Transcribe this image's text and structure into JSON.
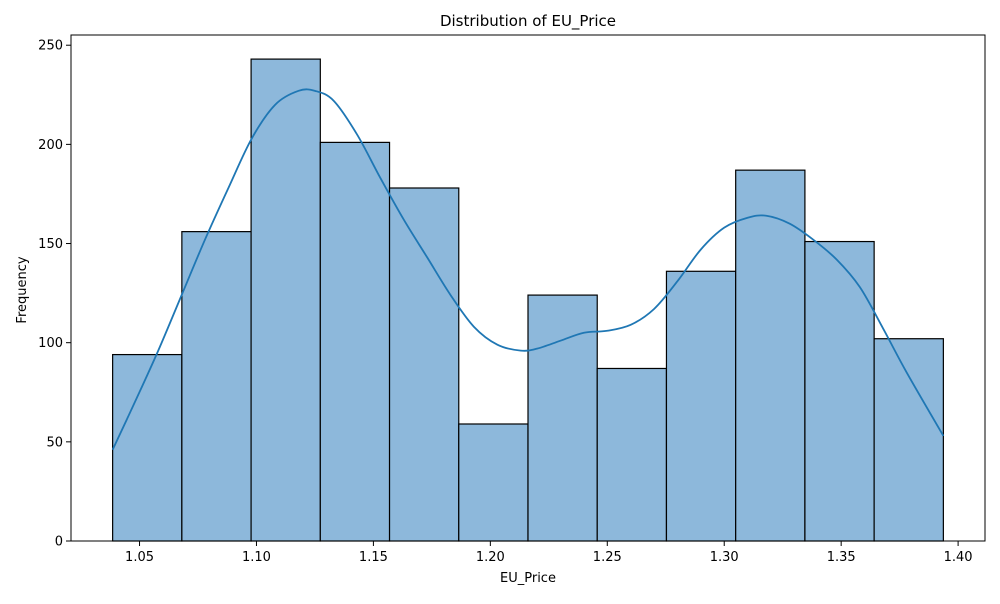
{
  "chart_data": {
    "type": "bar",
    "title": "Distribution of EU_Price",
    "xlabel": "EU_Price",
    "ylabel": "Frequency",
    "bin_edges": [
      1.0385,
      1.0681,
      1.0977,
      1.1273,
      1.1569,
      1.1865,
      1.2161,
      1.2457,
      1.2753,
      1.3049,
      1.3345,
      1.3641,
      1.3937
    ],
    "values": [
      94,
      156,
      243,
      201,
      178,
      59,
      124,
      87,
      136,
      187,
      151,
      102
    ],
    "kde": {
      "x": [
        1.0385,
        1.048,
        1.058,
        1.068,
        1.078,
        1.088,
        1.098,
        1.108,
        1.118,
        1.125,
        1.133,
        1.143,
        1.153,
        1.163,
        1.173,
        1.183,
        1.193,
        1.203,
        1.213,
        1.22,
        1.23,
        1.24,
        1.25,
        1.26,
        1.27,
        1.28,
        1.29,
        1.3,
        1.31,
        1.318,
        1.328,
        1.338,
        1.348,
        1.358,
        1.368,
        1.378,
        1.3937
      ],
      "y": [
        46,
        70,
        96,
        124,
        152,
        178,
        203,
        220,
        227,
        227,
        222,
        205,
        183,
        162,
        143,
        124,
        108,
        99,
        96,
        97,
        101,
        105,
        106,
        109,
        117,
        131,
        147,
        158,
        163,
        164,
        160,
        152,
        142,
        128,
        107,
        85,
        53
      ]
    },
    "xlim": [
      1.0207,
      1.4115
    ],
    "ylim": [
      0,
      255.15
    ],
    "xticks": [
      1.05,
      1.1,
      1.15,
      1.2,
      1.25,
      1.3,
      1.35,
      1.4
    ],
    "xtick_labels": [
      "1.05",
      "1.10",
      "1.15",
      "1.20",
      "1.25",
      "1.30",
      "1.35",
      "1.40"
    ],
    "yticks": [
      0,
      50,
      100,
      150,
      200,
      250
    ],
    "ytick_labels": [
      "0",
      "50",
      "100",
      "150",
      "200",
      "250"
    ],
    "grid": false,
    "colors": {
      "bar_fill": "#8db8db",
      "bar_edge": "#000000",
      "kde_line": "#1f77b4",
      "axes": "#000000"
    }
  }
}
